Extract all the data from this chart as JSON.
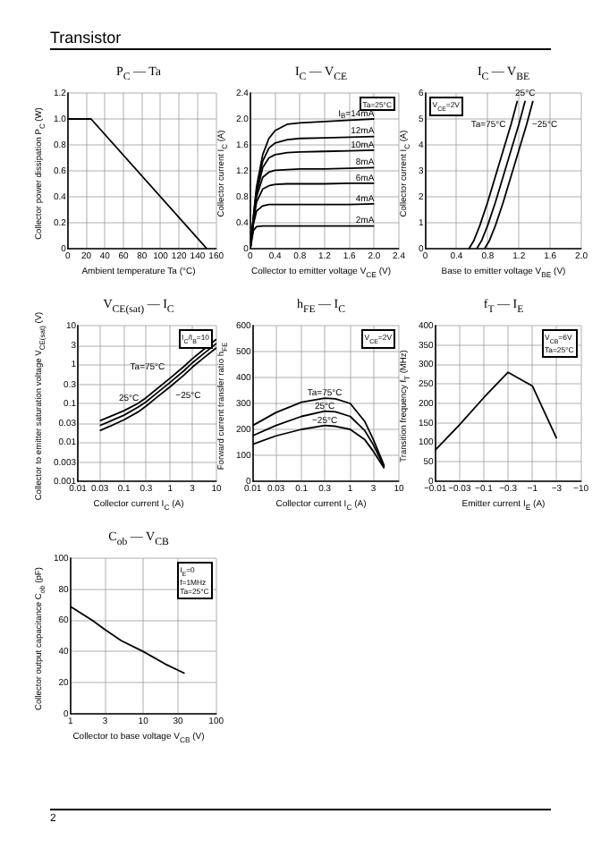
{
  "chart_data": [
    {
      "type": "line",
      "title": "P$_{C}$ — Ta",
      "xlabel": "Ambient temperature  Ta  (°C)",
      "ylabel": "Collector power dissipation  P$_{C}$  (W)",
      "annotations": [
        "Transistor"
      ],
      "x": [
        0,
        25,
        150
      ],
      "values": [
        1.0,
        1.0,
        0
      ],
      "color": "#000000",
      "xlim": [
        0,
        160
      ],
      "xticks": [
        0,
        20,
        40,
        60,
        80,
        100,
        120,
        140,
        160
      ],
      "ylim": [
        0,
        1.2
      ],
      "yticks": [
        0,
        0.2,
        0.4,
        0.6,
        0.8,
        {
          "value": 1,
          "label": "1.0"
        },
        1.2
      ],
      "grid": true
    },
    {
      "type": "line",
      "title": "I$_{C}$ — V$_{CE}$",
      "xlabel": "Collector to emitter voltage  V$_{CE}$  (V)",
      "ylabel": "Collector current  I$_{C}$  (A)",
      "annotations": [
        "Ta=25°C"
      ],
      "x": [
        0,
        0.05,
        0.1,
        0.2,
        0.3,
        0.4,
        0.6,
        0.8,
        1.2,
        1.6,
        2.0
      ],
      "series": [
        {
          "name": "I$_{B}$=14mA",
          "color": "#000000",
          "values": [
            0,
            0.5,
            0.95,
            1.45,
            1.7,
            1.82,
            1.92,
            1.94,
            1.96,
            1.98,
            2.0
          ]
        },
        {
          "name": "12mA",
          "color": "#000000",
          "values": [
            0,
            0.48,
            0.9,
            1.35,
            1.55,
            1.63,
            1.68,
            1.7,
            1.71,
            1.72,
            1.73
          ]
        },
        {
          "name": "10mA",
          "color": "#000000",
          "values": [
            0,
            0.46,
            0.85,
            1.25,
            1.4,
            1.45,
            1.48,
            1.49,
            1.5,
            1.51,
            1.52
          ]
        },
        {
          "name": "8mA",
          "color": "#000000",
          "values": [
            0,
            0.44,
            0.8,
            1.1,
            1.18,
            1.21,
            1.22,
            1.23,
            1.23,
            1.24,
            1.25
          ]
        },
        {
          "name": "6mA",
          "color": "#000000",
          "values": [
            0,
            0.42,
            0.72,
            0.92,
            0.97,
            0.99,
            1.0,
            1.0,
            1.0,
            1.01,
            1.01
          ]
        },
        {
          "name": "4mA",
          "color": "#000000",
          "values": [
            0,
            0.38,
            0.58,
            0.66,
            0.68,
            0.68,
            0.68,
            0.68,
            0.68,
            0.68,
            0.69
          ]
        },
        {
          "name": "2mA",
          "color": "#000000",
          "values": [
            0,
            0.28,
            0.34,
            0.35,
            0.35,
            0.35,
            0.35,
            0.35,
            0.35,
            0.35,
            0.35
          ]
        }
      ],
      "xlim": [
        0,
        2.4
      ],
      "xticks": [
        0,
        0.4,
        0.8,
        1.2,
        1.6,
        {
          "value": 2,
          "label": "2.0"
        },
        2.4
      ],
      "ylim": [
        0,
        2.4
      ],
      "yticks": [
        0,
        0.4,
        0.8,
        1.2,
        1.6,
        {
          "value": 2,
          "label": "2.0"
        },
        2.4
      ],
      "grid": true
    },
    {
      "type": "line",
      "title": "I$_{C}$ — V$_{BE}$",
      "xlabel": "Base to emitter voltage  V$_{BE}$  (V)",
      "ylabel": "Collector current  I$_{C}$  (A)",
      "annotations": [
        "V$_{CE}$=2V"
      ],
      "series": [
        {
          "name": "Ta=75°C",
          "color": "#000000",
          "x": [
            0.56,
            0.62,
            0.7,
            0.8,
            0.9,
            1.0,
            1.1,
            1.18
          ],
          "values": [
            0,
            0.3,
            0.9,
            1.8,
            2.8,
            3.8,
            4.8,
            5.7
          ]
        },
        {
          "name": "25°C",
          "color": "#000000",
          "x": [
            0.66,
            0.72,
            0.8,
            0.9,
            1.0,
            1.1,
            1.2,
            1.28
          ],
          "values": [
            0,
            0.3,
            0.9,
            1.8,
            2.8,
            3.8,
            4.8,
            5.7
          ]
        },
        {
          "name": "−25°C",
          "color": "#000000",
          "x": [
            0.76,
            0.82,
            0.9,
            1.0,
            1.1,
            1.2,
            1.3,
            1.38
          ],
          "values": [
            0,
            0.3,
            0.9,
            1.8,
            2.8,
            3.8,
            4.8,
            5.7
          ]
        }
      ],
      "xlim": [
        0,
        2.0
      ],
      "xticks": [
        0,
        0.4,
        0.8,
        1.2,
        1.6,
        {
          "value": 2,
          "label": "2.0"
        }
      ],
      "ylim": [
        0,
        6
      ],
      "yticks": [
        0,
        1,
        2,
        3,
        4,
        5,
        6
      ],
      "grid": true
    },
    {
      "type": "line",
      "title": "V$_{CE(sat)}$ — I$_{C}$",
      "xlabel": "Collector current  I$_{C}$  (A)",
      "ylabel": "Collector to emitter saturation voltage  V$_{CE(sat)}$  (V)",
      "annotations": [
        "I$_{C}$/I$_{B}$=10"
      ],
      "x": [
        0.03,
        0.05,
        0.1,
        0.2,
        0.3,
        0.5,
        1,
        2,
        3,
        5,
        10
      ],
      "series": [
        {
          "name": "Ta=75°C",
          "color": "#000000",
          "values": [
            0.036,
            0.046,
            0.065,
            0.1,
            0.14,
            0.23,
            0.45,
            0.9,
            1.4,
            2.3,
            4.5
          ]
        },
        {
          "name": "25°C",
          "color": "#000000",
          "values": [
            0.027,
            0.035,
            0.05,
            0.08,
            0.11,
            0.18,
            0.35,
            0.7,
            1.1,
            1.8,
            3.5
          ]
        },
        {
          "name": "−25°C",
          "color": "#000000",
          "values": [
            0.02,
            0.026,
            0.038,
            0.06,
            0.085,
            0.14,
            0.27,
            0.54,
            0.85,
            1.4,
            2.7
          ]
        }
      ],
      "log": "xy",
      "xlim": [
        0.01,
        10
      ],
      "xticks": [
        0.01,
        0.03,
        0.1,
        0.3,
        1,
        3,
        10
      ],
      "ylim": [
        0.001,
        10
      ],
      "yticks": [
        0.001,
        0.003,
        0.01,
        0.03,
        0.1,
        0.3,
        1,
        3,
        10
      ],
      "grid": true
    },
    {
      "type": "line",
      "title": "h$_{FE}$ — I$_{C}$",
      "xlabel": "Collector current  I$_{C}$  (A)",
      "ylabel": "Forward current transfer ratio  h$_{FE}$",
      "annotations": [
        "V$_{CE}$=2V"
      ],
      "x": [
        0.01,
        0.03,
        0.1,
        0.3,
        0.5,
        1,
        2,
        3,
        5
      ],
      "series": [
        {
          "name": "Ta=75°C",
          "color": "#000000",
          "values": [
            215,
            265,
            305,
            320,
            318,
            300,
            230,
            160,
            60
          ]
        },
        {
          "name": "25°C",
          "color": "#000000",
          "values": [
            176,
            215,
            250,
            270,
            268,
            250,
            195,
            140,
            55
          ]
        },
        {
          "name": "−25°C",
          "color": "#000000",
          "values": [
            143,
            175,
            200,
            215,
            212,
            200,
            160,
            115,
            50
          ]
        }
      ],
      "log": "x",
      "xlim": [
        0.01,
        10
      ],
      "xticks": [
        0.01,
        0.03,
        0.1,
        0.3,
        1,
        3,
        10
      ],
      "ylim": [
        0,
        600
      ],
      "yticks": [
        0,
        100,
        200,
        300,
        400,
        500,
        600
      ],
      "grid": true
    },
    {
      "type": "line",
      "title": "f$_{T}$ — I$_{E}$",
      "xlabel": "Emitter current  I$_{E}$  (A)",
      "ylabel": "Transition frequency  f$_{T}$  (MHz)",
      "annotations": [
        "V$_{CB}$=6V",
        "Ta=25°C"
      ],
      "categories": [
        "−0.01",
        "−0.03",
        "−0.1",
        "−0.3",
        "−1",
        "−3",
        "−10"
      ],
      "values": [
        80,
        145,
        215,
        280,
        245,
        110,
        null
      ],
      "color": "#000000",
      "ylim": [
        0,
        400
      ],
      "yticks": [
        0,
        50,
        100,
        150,
        200,
        250,
        300,
        350,
        400
      ],
      "grid": true
    },
    {
      "type": "line",
      "title": "C$_{ob}$ — V$_{CB}$",
      "xlabel": "Collector to base voltage  V$_{CB}$  (V)",
      "ylabel": "Collector output capacitance  C$_{ob}$  (pF)",
      "annotations": [
        "I$_{E}$=0",
        "f=1MHz",
        "Ta=25°C",
        "2"
      ],
      "x": [
        1,
        2,
        3,
        5,
        10,
        20,
        37
      ],
      "values": [
        69,
        60,
        54,
        47,
        40,
        32,
        26
      ],
      "color": "#000000",
      "log": "x",
      "xlim": [
        1,
        100
      ],
      "xticks": [
        1,
        3,
        10,
        30,
        100
      ],
      "ylim": [
        0,
        100
      ],
      "yticks": [
        0,
        20,
        40,
        60,
        80,
        100
      ],
      "grid": true
    }
  ]
}
